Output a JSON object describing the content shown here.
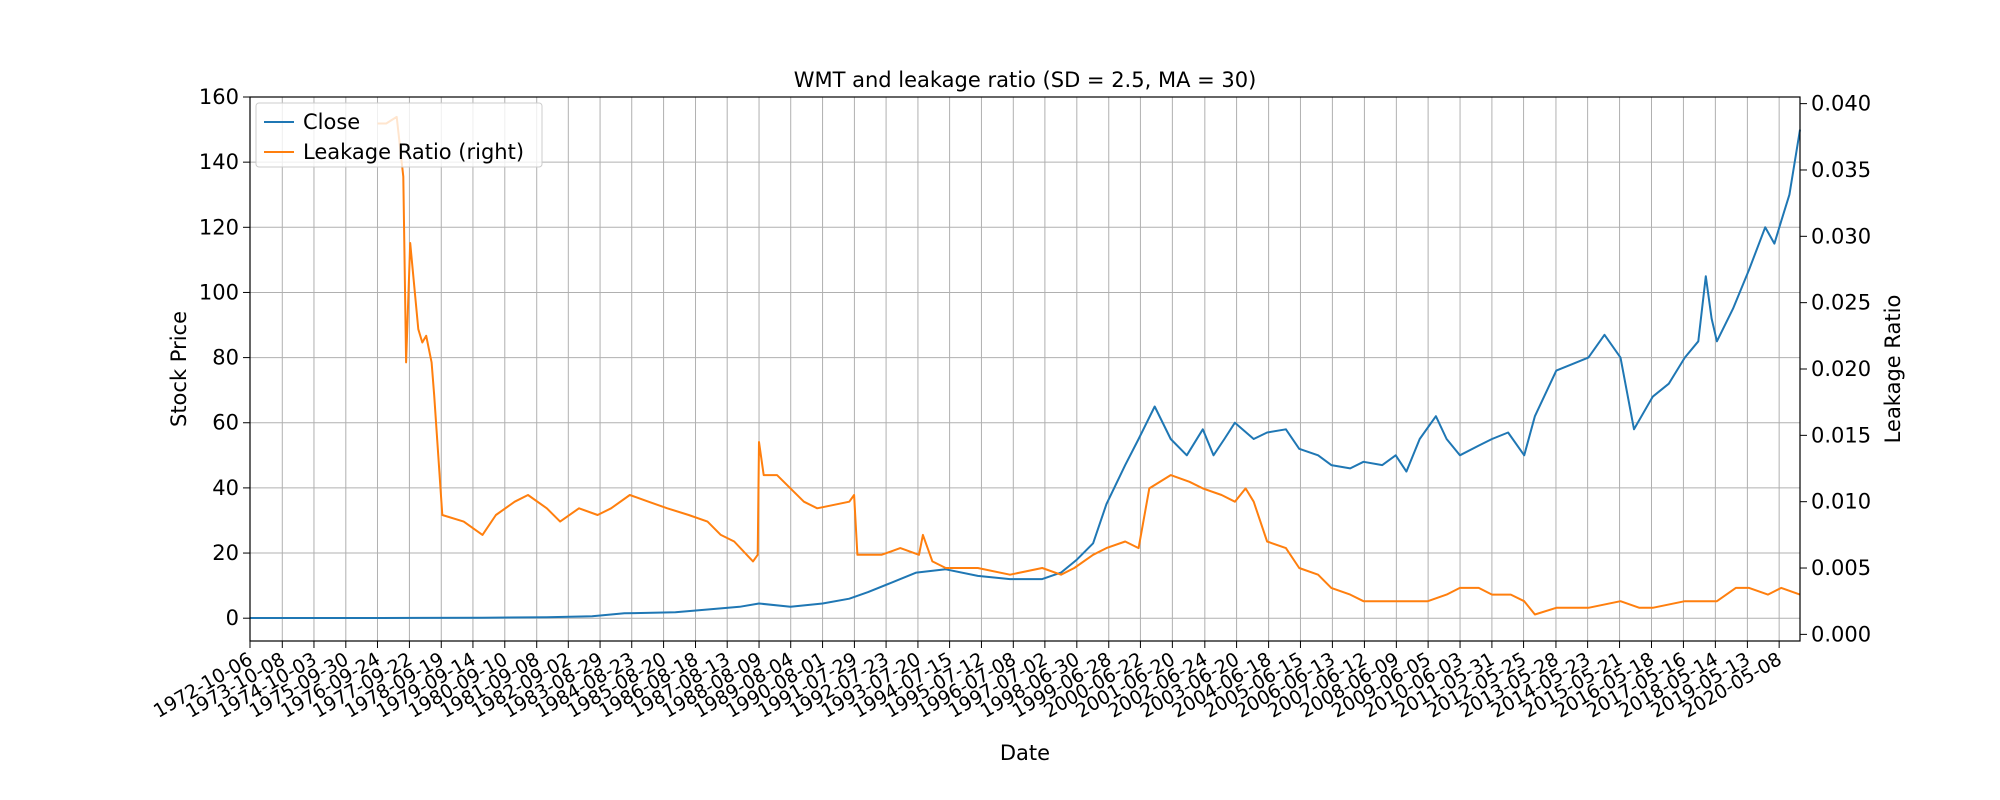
{
  "chart_data": {
    "type": "line",
    "title": "WMT and leakage ratio (SD = 2.5, MA = 30)",
    "xlabel": "Date",
    "ylabel": "Stock Price",
    "ylabel_right": "Leakage Ratio",
    "xlim": [
      "1972-10-06",
      "2020-12-31"
    ],
    "ylim": [
      -7,
      160
    ],
    "ylim_right": [
      -0.0005,
      0.0405
    ],
    "grid": true,
    "legend_position": "upper-left",
    "x_ticks": [
      "1972-10-06",
      "1973-10-08",
      "1974-10-03",
      "1975-09-30",
      "1976-09-24",
      "1977-09-22",
      "1978-09-19",
      "1979-09-14",
      "1980-09-10",
      "1981-09-08",
      "1982-09-02",
      "1983-08-29",
      "1984-08-23",
      "1985-08-20",
      "1986-08-18",
      "1987-08-13",
      "1988-08-09",
      "1989-08-04",
      "1990-08-01",
      "1991-07-29",
      "1992-07-23",
      "1993-07-20",
      "1994-07-15",
      "1995-07-12",
      "1996-07-08",
      "1997-07-02",
      "1998-06-30",
      "1999-06-28",
      "2000-06-22",
      "2001-06-20",
      "2002-06-24",
      "2003-06-20",
      "2004-06-18",
      "2005-06-15",
      "2006-06-13",
      "2007-06-12",
      "2008-06-09",
      "2009-06-05",
      "2010-06-03",
      "2011-05-31",
      "2012-05-25",
      "2013-05-28",
      "2014-05-23",
      "2015-05-21",
      "2016-05-18",
      "2017-05-16",
      "2018-05-14",
      "2019-05-13",
      "2020-05-08"
    ],
    "y_ticks": [
      "0",
      "20",
      "40",
      "60",
      "80",
      "100",
      "120",
      "140",
      "160"
    ],
    "y_ticks_right": [
      "0.000",
      "0.005",
      "0.010",
      "0.015",
      "0.020",
      "0.025",
      "0.030",
      "0.035",
      "0.040"
    ],
    "colors": {
      "Close": "#1f77b4",
      "Leakage Ratio (right)": "#ff7f0e",
      "grid": "#b0b0b0"
    },
    "series": [
      {
        "name": "Close",
        "axis": "left",
        "x": [
          "1972-10-06",
          "1975-01-01",
          "1978-01-01",
          "1980-01-01",
          "1982-01-01",
          "1983-06-01",
          "1984-06-01",
          "1986-01-01",
          "1987-06-01",
          "1988-01-01",
          "1988-08-09",
          "1989-08-01",
          "1990-08-01",
          "1991-06-01",
          "1992-01-01",
          "1993-01-01",
          "1993-07-01",
          "1994-06-01",
          "1995-06-01",
          "1996-06-01",
          "1997-06-01",
          "1998-01-01",
          "1998-07-01",
          "1999-01-01",
          "1999-06-01",
          "2000-01-01",
          "2000-06-01",
          "2000-12-01",
          "2001-06-01",
          "2001-12-01",
          "2002-06-01",
          "2002-10-01",
          "2003-02-01",
          "2003-06-01",
          "2004-01-01",
          "2004-06-01",
          "2005-01-01",
          "2005-06-01",
          "2006-01-01",
          "2006-06-01",
          "2007-01-01",
          "2007-06-01",
          "2008-01-01",
          "2008-06-01",
          "2008-10-01",
          "2009-03-01",
          "2009-09-01",
          "2010-01-01",
          "2010-06-01",
          "2011-01-01",
          "2011-06-01",
          "2011-12-01",
          "2012-06-01",
          "2012-10-01",
          "2013-06-01",
          "2013-12-01",
          "2014-06-01",
          "2014-12-01",
          "2015-06-01",
          "2015-11-01",
          "2016-06-01",
          "2016-12-01",
          "2017-06-01",
          "2017-11-01",
          "2018-01-25",
          "2018-04-01",
          "2018-06-01",
          "2018-12-01",
          "2019-06-01",
          "2019-12-01",
          "2020-03-15",
          "2020-06-01",
          "2020-09-01",
          "2020-12-31"
        ],
        "values": [
          0.05,
          0.07,
          0.1,
          0.15,
          0.3,
          0.6,
          1.5,
          1.8,
          3.0,
          3.5,
          4.5,
          3.5,
          4.5,
          6.0,
          8.0,
          12.0,
          14.0,
          15.0,
          13.0,
          12.0,
          12.0,
          14.0,
          18.0,
          23.0,
          35.0,
          47.0,
          55.0,
          65.0,
          55.0,
          50.0,
          58.0,
          50.0,
          55.0,
          60.0,
          55.0,
          57.0,
          58.0,
          52.0,
          50.0,
          47.0,
          46.0,
          48.0,
          47.0,
          50.0,
          45.0,
          55.0,
          62.0,
          55.0,
          50.0,
          53.0,
          55.0,
          57.0,
          50.0,
          62.0,
          76.0,
          78.0,
          80.0,
          87.0,
          80.0,
          58.0,
          68.0,
          72.0,
          80.0,
          85.0,
          105.0,
          92.0,
          85.0,
          95.0,
          107.0,
          120.0,
          115.0,
          122.0,
          130.0,
          150.0
        ]
      },
      {
        "name": "Leakage Ratio (right)",
        "axis": "right",
        "x": [
          "1976-09-24",
          "1977-01-01",
          "1977-05-01",
          "1977-07-15",
          "1977-08-15",
          "1977-10-01",
          "1978-01-01",
          "1978-02-15",
          "1978-04-01",
          "1978-06-01",
          "1978-07-01",
          "1978-10-01",
          "1979-06-01",
          "1980-01-01",
          "1980-06-01",
          "1981-01-01",
          "1981-06-01",
          "1982-01-01",
          "1982-06-01",
          "1983-01-01",
          "1983-08-01",
          "1984-01-01",
          "1984-08-01",
          "1985-03-01",
          "1985-10-01",
          "1986-06-01",
          "1987-01-01",
          "1987-06-01",
          "1987-11-01",
          "1988-06-01",
          "1988-07-25",
          "1988-08-09",
          "1988-10-01",
          "1989-03-01",
          "1989-08-01",
          "1990-01-01",
          "1990-06-01",
          "1991-06-01",
          "1991-07-25",
          "1991-09-01",
          "1992-06-01",
          "1993-01-01",
          "1993-08-01",
          "1993-09-15",
          "1994-01-01",
          "1994-06-01",
          "1995-06-01",
          "1996-06-01",
          "1997-06-01",
          "1998-01-01",
          "1998-06-01",
          "1999-01-01",
          "1999-06-01",
          "2000-01-01",
          "2000-06-01",
          "2000-10-01",
          "2001-06-01",
          "2002-01-01",
          "2002-06-01",
          "2003-01-01",
          "2003-06-01",
          "2003-10-01",
          "2004-01-01",
          "2004-06-01",
          "2005-01-01",
          "2005-06-01",
          "2006-01-01",
          "2006-06-01",
          "2007-01-01",
          "2007-06-01",
          "2008-06-01",
          "2009-06-01",
          "2010-01-01",
          "2010-06-01",
          "2011-01-01",
          "2011-06-01",
          "2012-01-01",
          "2012-06-01",
          "2012-10-01",
          "2013-06-01",
          "2014-06-01",
          "2015-06-01",
          "2016-01-01",
          "2016-06-01",
          "2017-06-01",
          "2018-06-01",
          "2019-01-01",
          "2019-06-01",
          "2020-01-01",
          "2020-06-01",
          "2020-12-31"
        ],
        "values": [
          0.0385,
          0.0385,
          0.039,
          0.0345,
          0.0205,
          0.0295,
          0.023,
          0.022,
          0.0225,
          0.0205,
          0.018,
          0.009,
          0.0085,
          0.0075,
          0.009,
          0.01,
          0.0105,
          0.0095,
          0.0085,
          0.0095,
          0.009,
          0.0095,
          0.0105,
          0.01,
          0.0095,
          0.009,
          0.0085,
          0.0075,
          0.007,
          0.0055,
          0.006,
          0.0145,
          0.012,
          0.012,
          0.011,
          0.01,
          0.0095,
          0.01,
          0.0105,
          0.006,
          0.006,
          0.0065,
          0.006,
          0.0075,
          0.0055,
          0.005,
          0.005,
          0.0045,
          0.005,
          0.0045,
          0.005,
          0.006,
          0.0065,
          0.007,
          0.0065,
          0.011,
          0.012,
          0.0115,
          0.011,
          0.0105,
          0.01,
          0.011,
          0.01,
          0.007,
          0.0065,
          0.005,
          0.0045,
          0.0035,
          0.003,
          0.0025,
          0.0025,
          0.0025,
          0.003,
          0.0035,
          0.0035,
          0.003,
          0.003,
          0.0025,
          0.0015,
          0.002,
          0.002,
          0.0025,
          0.002,
          0.002,
          0.0025,
          0.0025,
          0.0035,
          0.0035,
          0.003,
          0.0035,
          0.003
        ]
      }
    ]
  }
}
